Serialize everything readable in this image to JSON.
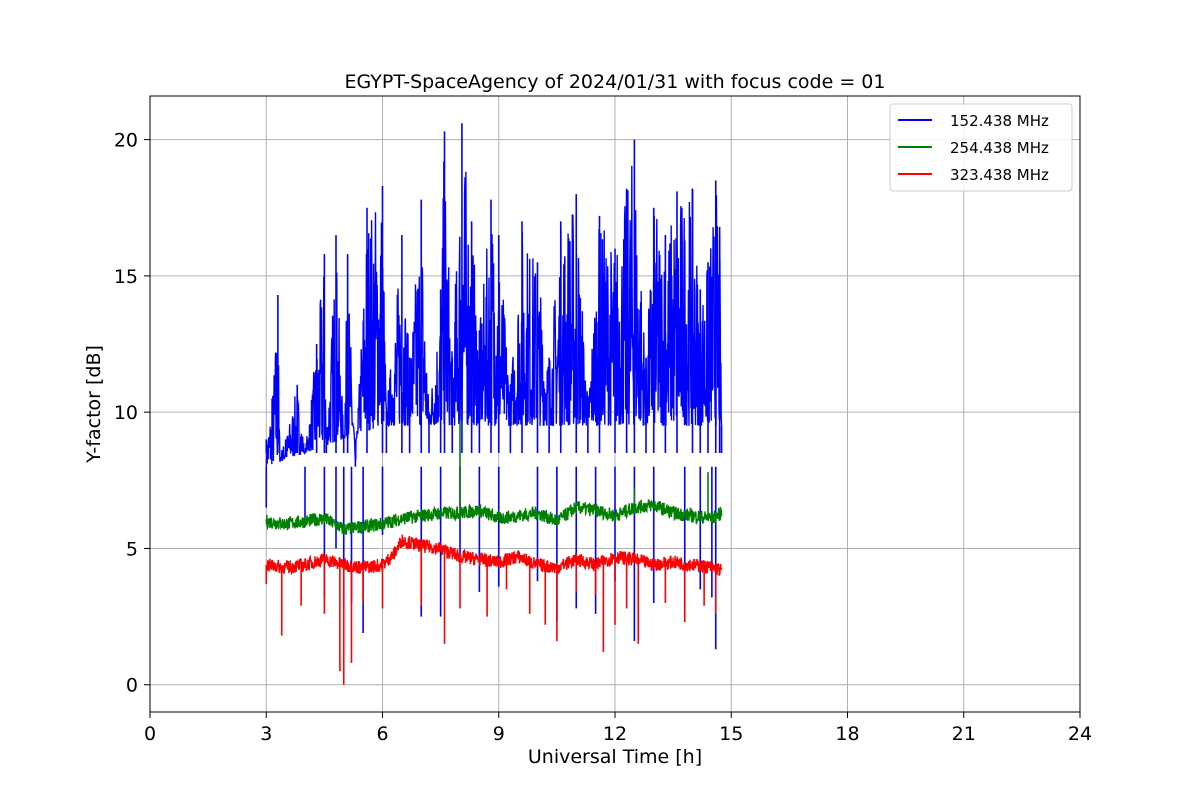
{
  "chart_data": {
    "type": "line",
    "title": "EGYPT-SpaceAgency of 2024/01/31 with focus code = 01",
    "xlabel": "Universal Time [h]",
    "ylabel": "Y-factor [dB]",
    "xlim": [
      0,
      24
    ],
    "ylim": [
      -1.0,
      21.6
    ],
    "xticks": [
      0,
      3,
      6,
      9,
      12,
      15,
      18,
      21,
      24
    ],
    "xtick_labels": [
      "0",
      "3",
      "6",
      "9",
      "12",
      "15",
      "18",
      "21",
      "24"
    ],
    "yticks": [
      0,
      5,
      10,
      15,
      20
    ],
    "ytick_labels": [
      "0",
      "5",
      "10",
      "15",
      "20"
    ],
    "grid": true,
    "legend_position": "top-right",
    "series": [
      {
        "name": "152.438 MHz",
        "color": "#0000ff",
        "x": [
          3.0,
          3.15,
          3.3,
          3.35,
          3.5,
          3.8,
          4.0,
          4.3,
          4.5,
          4.55,
          4.8,
          5.0,
          5.1,
          5.3,
          5.6,
          6.0,
          6.1,
          6.5,
          6.7,
          7.0,
          7.2,
          7.5,
          7.6,
          7.8,
          8.05,
          8.3,
          8.5,
          8.8,
          9.0,
          9.3,
          9.6,
          10.0,
          10.3,
          10.6,
          11.0,
          11.3,
          11.6,
          12.0,
          12.3,
          12.5,
          12.8,
          13.0,
          13.3,
          13.6,
          14.0,
          14.2,
          14.4,
          14.6,
          14.7,
          14.75
        ],
        "y": [
          9.0,
          10.5,
          14.3,
          8.5,
          9.0,
          11.0,
          8.5,
          12.5,
          15.8,
          9.0,
          16.5,
          9.0,
          15.8,
          8.0,
          17.5,
          18.3,
          10.0,
          16.5,
          12.0,
          17.8,
          10.0,
          14.5,
          20.3,
          12.0,
          20.6,
          17.0,
          13.0,
          17.8,
          16.5,
          11.0,
          17.0,
          15.5,
          12.0,
          17.0,
          18.0,
          10.5,
          17.2,
          16.0,
          18.2,
          20.0,
          12.0,
          17.5,
          16.5,
          18.1,
          18.2,
          14.5,
          15.5,
          18.5,
          16.8,
          9.5
        ],
        "spikes_down": [
          [
            3.0,
            6.5
          ],
          [
            4.0,
            5.8
          ],
          [
            4.5,
            3.2
          ],
          [
            4.8,
            5.0
          ],
          [
            5.0,
            2.8
          ],
          [
            5.2,
            3.0
          ],
          [
            5.5,
            1.9
          ],
          [
            6.0,
            5.5
          ],
          [
            7.0,
            2.5
          ],
          [
            7.5,
            2.5
          ],
          [
            8.0,
            4.5
          ],
          [
            8.5,
            3.4
          ],
          [
            9.0,
            3.6
          ],
          [
            10.0,
            3.8
          ],
          [
            10.5,
            2.3
          ],
          [
            11.0,
            2.8
          ],
          [
            11.5,
            2.6
          ],
          [
            12.0,
            3.8
          ],
          [
            12.5,
            1.6
          ],
          [
            13.0,
            3.0
          ],
          [
            13.8,
            2.8
          ],
          [
            14.2,
            3.5
          ],
          [
            14.5,
            3.2
          ],
          [
            14.6,
            1.3
          ]
        ]
      },
      {
        "name": "254.438 MHz",
        "color": "#008000",
        "x": [
          3.0,
          3.5,
          4.0,
          4.5,
          5.0,
          5.5,
          6.0,
          6.5,
          7.0,
          7.5,
          8.0,
          8.5,
          9.0,
          9.5,
          10.0,
          10.5,
          11.0,
          11.5,
          12.0,
          12.5,
          13.0,
          13.5,
          14.0,
          14.5,
          14.75
        ],
        "y": [
          6.0,
          5.9,
          6.0,
          6.1,
          5.7,
          5.8,
          5.9,
          6.1,
          6.2,
          6.3,
          6.3,
          6.4,
          6.1,
          6.2,
          6.3,
          6.0,
          6.5,
          6.4,
          6.2,
          6.5,
          6.6,
          6.3,
          6.2,
          6.1,
          6.3
        ],
        "spikes_up": [
          [
            8.0,
            9.7
          ],
          [
            12.5,
            7.2
          ],
          [
            14.4,
            7.8
          ]
        ]
      },
      {
        "name": "323.438 MHz",
        "color": "#ff0000",
        "x": [
          3.0,
          3.5,
          4.0,
          4.5,
          5.0,
          5.5,
          6.0,
          6.3,
          6.5,
          7.0,
          7.5,
          8.0,
          8.5,
          9.0,
          9.5,
          10.0,
          10.5,
          11.0,
          11.5,
          12.0,
          12.5,
          13.0,
          13.5,
          14.0,
          14.5,
          14.75
        ],
        "y": [
          4.4,
          4.3,
          4.4,
          4.6,
          4.4,
          4.3,
          4.4,
          4.8,
          5.3,
          5.1,
          5.0,
          4.7,
          4.6,
          4.5,
          4.7,
          4.4,
          4.3,
          4.6,
          4.4,
          4.7,
          4.6,
          4.4,
          4.5,
          4.4,
          4.3,
          4.2
        ],
        "spikes_down": [
          [
            3.0,
            3.7
          ],
          [
            3.4,
            1.8
          ],
          [
            3.9,
            2.9
          ],
          [
            4.5,
            2.6
          ],
          [
            4.9,
            0.5
          ],
          [
            5.0,
            0.0
          ],
          [
            5.2,
            0.8
          ],
          [
            5.5,
            3.0
          ],
          [
            6.0,
            2.8
          ],
          [
            7.0,
            2.9
          ],
          [
            7.6,
            1.5
          ],
          [
            8.0,
            2.8
          ],
          [
            8.7,
            2.5
          ],
          [
            9.2,
            3.5
          ],
          [
            9.8,
            2.6
          ],
          [
            10.2,
            2.2
          ],
          [
            10.5,
            1.6
          ],
          [
            11.0,
            3.4
          ],
          [
            11.5,
            3.3
          ],
          [
            11.7,
            1.2
          ],
          [
            12.0,
            2.2
          ],
          [
            12.3,
            2.8
          ],
          [
            12.6,
            1.5
          ],
          [
            13.3,
            3.0
          ],
          [
            13.8,
            2.3
          ],
          [
            14.3,
            2.9
          ],
          [
            14.6,
            2.6
          ]
        ]
      }
    ]
  }
}
